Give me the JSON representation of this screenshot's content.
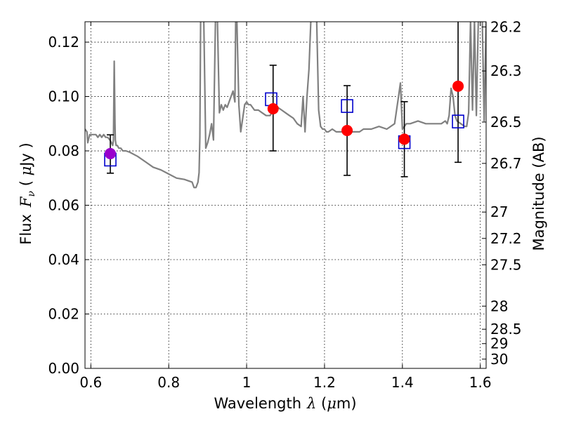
{
  "chart_data": {
    "type": "scatter",
    "xlabel": {
      "prefix": "Wavelength",
      "symbol": "λ",
      "unit_open": " (",
      "unit_mu": "μ",
      "unit_rest": "m)"
    },
    "ylabel": {
      "prefix": "Flux",
      "symbol": "F",
      "subscript": "ν",
      "unit_open": " ( ",
      "unit_mu": "μ",
      "unit_rest": "Jy )"
    },
    "y2label": "Magnitude (AB)",
    "xlim": [
      0.585,
      1.615
    ],
    "ylim": [
      0.0,
      0.1275
    ],
    "grid": true,
    "x_ticks": [
      {
        "value": 0.6,
        "label": "0.6"
      },
      {
        "value": 0.8,
        "label": "0.8"
      },
      {
        "value": 1.0,
        "label": "1"
      },
      {
        "value": 1.2,
        "label": "1.2"
      },
      {
        "value": 1.4,
        "label": "1.4"
      },
      {
        "value": 1.6,
        "label": "1.6"
      }
    ],
    "y_ticks": [
      {
        "value": 0.0,
        "label": "0.00"
      },
      {
        "value": 0.02,
        "label": "0.02"
      },
      {
        "value": 0.04,
        "label": "0.04"
      },
      {
        "value": 0.06,
        "label": "0.06"
      },
      {
        "value": 0.08,
        "label": "0.08"
      },
      {
        "value": 0.1,
        "label": "0.10"
      },
      {
        "value": 0.12,
        "label": "0.12"
      }
    ],
    "y2_ticks": [
      {
        "flux": 0.1256,
        "label": "26.2"
      },
      {
        "flux": 0.1094,
        "label": "26.3"
      },
      {
        "flux": 0.0906,
        "label": "26.5"
      },
      {
        "flux": 0.0754,
        "label": "26.7"
      },
      {
        "flux": 0.0575,
        "label": "27"
      },
      {
        "flux": 0.0478,
        "label": "27.2"
      },
      {
        "flux": 0.0381,
        "label": "27.5"
      },
      {
        "flux": 0.0229,
        "label": "28"
      },
      {
        "flux": 0.0144,
        "label": "28.5"
      },
      {
        "flux": 0.0091,
        "label": "29"
      },
      {
        "flux": 0.0034,
        "label": "30"
      }
    ],
    "model_spectrum": {
      "color": "#808080",
      "x": [
        0.585,
        0.59,
        0.592,
        0.597,
        0.602,
        0.607,
        0.613,
        0.618,
        0.623,
        0.628,
        0.633,
        0.638,
        0.643,
        0.649,
        0.653,
        0.656,
        0.658,
        0.66,
        0.662,
        0.663,
        0.665,
        0.668,
        0.672,
        0.677,
        0.682,
        0.69,
        0.7,
        0.72,
        0.74,
        0.76,
        0.78,
        0.8,
        0.82,
        0.84,
        0.86,
        0.865,
        0.87,
        0.875,
        0.878,
        0.88,
        0.882,
        0.885,
        0.89,
        0.895,
        0.9,
        0.905,
        0.91,
        0.915,
        0.92,
        0.925,
        0.93,
        0.935,
        0.94,
        0.945,
        0.95,
        0.955,
        0.96,
        0.965,
        0.97,
        0.972,
        0.975,
        0.98,
        0.985,
        0.99,
        0.995,
        1.0,
        1.005,
        1.01,
        1.015,
        1.02,
        1.03,
        1.04,
        1.05,
        1.06,
        1.07,
        1.08,
        1.09,
        1.1,
        1.11,
        1.12,
        1.13,
        1.14,
        1.145,
        1.15,
        1.155,
        1.16,
        1.165,
        1.17,
        1.175,
        1.18,
        1.185,
        1.19,
        1.195,
        1.2,
        1.205,
        1.21,
        1.22,
        1.23,
        1.24,
        1.25,
        1.26,
        1.27,
        1.28,
        1.29,
        1.3,
        1.32,
        1.34,
        1.36,
        1.38,
        1.39,
        1.395,
        1.4,
        1.41,
        1.42,
        1.44,
        1.46,
        1.48,
        1.5,
        1.51,
        1.515,
        1.52,
        1.525,
        1.53,
        1.535,
        1.54,
        1.55,
        1.56,
        1.565,
        1.57,
        1.575,
        1.58,
        1.585,
        1.59,
        1.595,
        1.6,
        1.605,
        1.61,
        1.615
      ],
      "y": [
        0.088,
        0.087,
        0.083,
        0.086,
        0.086,
        0.086,
        0.086,
        0.085,
        0.086,
        0.085,
        0.086,
        0.085,
        0.085,
        0.084,
        0.083,
        0.082,
        0.084,
        0.113,
        0.09,
        0.084,
        0.082,
        0.082,
        0.081,
        0.081,
        0.08,
        0.08,
        0.0795,
        0.078,
        0.076,
        0.074,
        0.073,
        0.0715,
        0.07,
        0.0695,
        0.0685,
        0.0665,
        0.0665,
        0.0685,
        0.072,
        0.085,
        0.128,
        0.128,
        0.128,
        0.081,
        0.083,
        0.086,
        0.09,
        0.084,
        0.128,
        0.128,
        0.094,
        0.097,
        0.095,
        0.097,
        0.096,
        0.098,
        0.1,
        0.102,
        0.098,
        0.128,
        0.128,
        0.097,
        0.087,
        0.092,
        0.097,
        0.098,
        0.097,
        0.097,
        0.096,
        0.095,
        0.095,
        0.094,
        0.093,
        0.093,
        0.095,
        0.096,
        0.095,
        0.094,
        0.093,
        0.092,
        0.09,
        0.089,
        0.1,
        0.087,
        0.1,
        0.11,
        0.128,
        0.128,
        0.128,
        0.128,
        0.095,
        0.089,
        0.088,
        0.088,
        0.087,
        0.087,
        0.088,
        0.087,
        0.087,
        0.087,
        0.087,
        0.087,
        0.087,
        0.087,
        0.088,
        0.088,
        0.089,
        0.088,
        0.09,
        0.1,
        0.105,
        0.088,
        0.09,
        0.09,
        0.091,
        0.09,
        0.09,
        0.09,
        0.091,
        0.09,
        0.093,
        0.103,
        0.1,
        0.093,
        0.091,
        0.09,
        0.089,
        0.089,
        0.094,
        0.128,
        0.095,
        0.128,
        0.093,
        0.128,
        0.128,
        0.128,
        0.091,
        0.128
      ]
    },
    "observed_points": [
      {
        "x": 0.65,
        "y": 0.079,
        "yerr_low": 0.0072,
        "yerr_high": 0.0069,
        "color": "#9900cc",
        "marker": "circle"
      },
      {
        "x": 1.068,
        "y": 0.0955,
        "yerr_low": 0.0155,
        "yerr_high": 0.016,
        "color": "#ff0000",
        "marker": "circle"
      },
      {
        "x": 1.258,
        "y": 0.0875,
        "yerr_low": 0.0165,
        "yerr_high": 0.0165,
        "color": "#ff0000",
        "marker": "circle"
      },
      {
        "x": 1.405,
        "y": 0.0843,
        "yerr_low": 0.0138,
        "yerr_high": 0.0138,
        "color": "#ff0000",
        "marker": "circle"
      },
      {
        "x": 1.543,
        "y": 0.1038,
        "yerr_low": 0.028,
        "yerr_high": 0.05,
        "color": "#ff0000",
        "marker": "circle"
      }
    ],
    "model_points": [
      {
        "x": 0.65,
        "y": 0.0768,
        "color": "#0000cc",
        "marker": "square"
      },
      {
        "x": 1.063,
        "y": 0.099,
        "color": "#0000cc",
        "marker": "square"
      },
      {
        "x": 1.258,
        "y": 0.0965,
        "color": "#0000cc",
        "marker": "square"
      },
      {
        "x": 1.405,
        "y": 0.0832,
        "color": "#0000cc",
        "marker": "square"
      },
      {
        "x": 1.543,
        "y": 0.0908,
        "color": "#0000cc",
        "marker": "square"
      }
    ]
  }
}
